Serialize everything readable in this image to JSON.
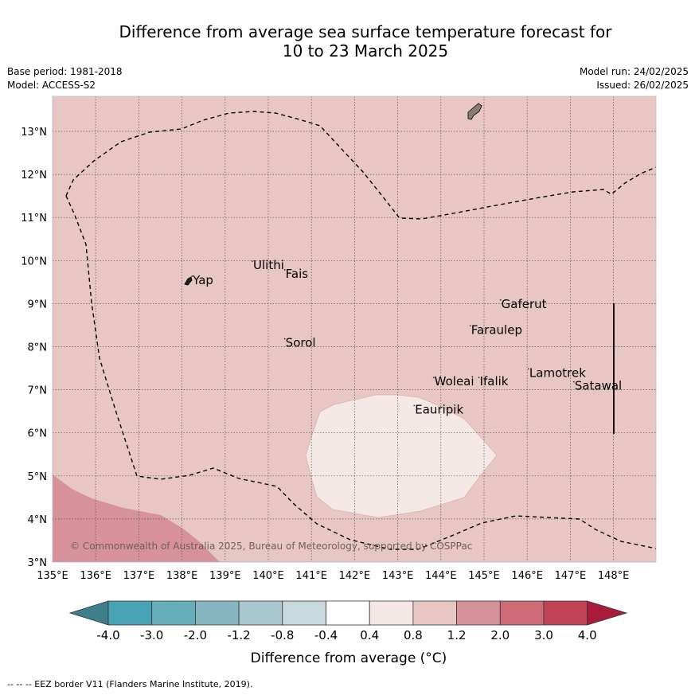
{
  "title_line1": "Difference from average sea surface temperature forecast for",
  "title_line2": "10 to 23 March 2025",
  "base_period": "Base period: 1981-2018",
  "model": "Model: ACCESS-S2",
  "model_run": "Model run: 24/02/2025",
  "issued": "Issued: 26/02/2025",
  "copyright": "© Commonwealth of Australia 2025, Bureau of Meteorology, supported by COSPPac",
  "footer": "-- -- -- EEZ border V11 (Flanders Marine Institute, 2019).",
  "map": {
    "lon_range": [
      135,
      149
    ],
    "lat_range": [
      3,
      13.8
    ],
    "lon_ticks": [
      "135°E",
      "136°E",
      "137°E",
      "138°E",
      "139°E",
      "140°E",
      "141°E",
      "142°E",
      "143°E",
      "144°E",
      "145°E",
      "146°E",
      "147°E",
      "148°E"
    ],
    "lat_ticks": [
      "3°N",
      "4°N",
      "5°N",
      "6°N",
      "7°N",
      "8°N",
      "9°N",
      "10°N",
      "11°N",
      "12°N",
      "13°N"
    ],
    "background_color": "#e7c6c3",
    "places": [
      {
        "name": "Yap",
        "lon": 138.25,
        "lat": 9.45
      },
      {
        "name": "Ulithi",
        "lon": 139.65,
        "lat": 9.8
      },
      {
        "name": "Fais",
        "lon": 140.4,
        "lat": 9.6
      },
      {
        "name": "Gaferut",
        "lon": 145.4,
        "lat": 8.9
      },
      {
        "name": "Faraulep",
        "lon": 144.7,
        "lat": 8.3
      },
      {
        "name": "Sorol",
        "lon": 140.4,
        "lat": 8.0
      },
      {
        "name": "Woleai",
        "lon": 143.85,
        "lat": 7.1
      },
      {
        "name": "Ifalik",
        "lon": 144.9,
        "lat": 7.1
      },
      {
        "name": "Lamotrek",
        "lon": 146.05,
        "lat": 7.3
      },
      {
        "name": "Satawal",
        "lon": 147.1,
        "lat": 7.0
      },
      {
        "name": "Eauripik",
        "lon": 143.4,
        "lat": 6.45
      }
    ]
  },
  "colorbar": {
    "boundaries": [
      "-4.0",
      "-3.0",
      "-2.0",
      "-1.2",
      "-0.8",
      "-0.4",
      "0.4",
      "0.8",
      "1.2",
      "2.0",
      "3.0",
      "4.0"
    ],
    "colors": [
      "#3d7f8a",
      "#47a2b3",
      "#67aebb",
      "#86b6c2",
      "#a9c8ce",
      "#c7d9dc",
      "#ffffff",
      "#f4e8e6",
      "#e7c6c3",
      "#d7919a",
      "#cd6a76",
      "#c04454",
      "#a81c3a"
    ],
    "label": "Difference from average (°C)"
  }
}
